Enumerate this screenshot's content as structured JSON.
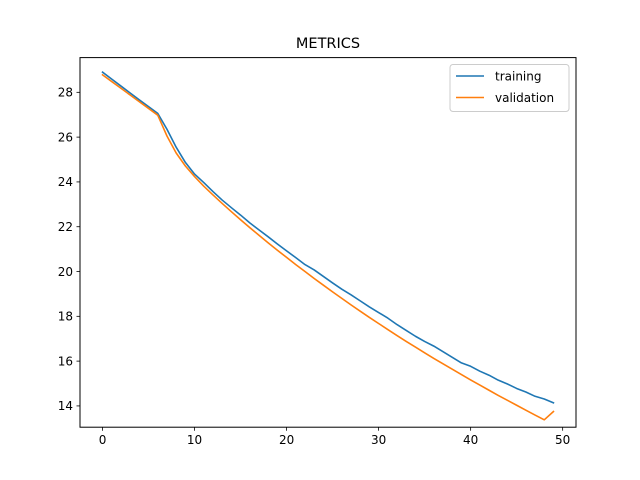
{
  "chart_data": {
    "type": "line",
    "title": "METRICS",
    "xlabel": "",
    "ylabel": "",
    "xlim": [
      -2.45,
      51.45
    ],
    "ylim": [
      13.05,
      29.55
    ],
    "xticks": [
      0,
      10,
      20,
      30,
      40,
      50
    ],
    "yticks": [
      14,
      16,
      18,
      20,
      22,
      24,
      26,
      28
    ],
    "grid": false,
    "legend_position": "top-right",
    "x": [
      0,
      1,
      2,
      3,
      4,
      5,
      6,
      7,
      8,
      9,
      10,
      11,
      12,
      13,
      14,
      15,
      16,
      17,
      18,
      19,
      20,
      21,
      22,
      23,
      24,
      25,
      26,
      27,
      28,
      29,
      30,
      31,
      32,
      33,
      34,
      35,
      36,
      37,
      38,
      39,
      40,
      41,
      42,
      43,
      44,
      45,
      46,
      47,
      48,
      49
    ],
    "series": [
      {
        "name": "training",
        "color": "#1f77b4",
        "values": [
          28.9,
          28.59,
          28.28,
          27.97,
          27.66,
          27.36,
          27.06,
          26.35,
          25.55,
          24.87,
          24.35,
          23.97,
          23.57,
          23.19,
          22.85,
          22.52,
          22.17,
          21.86,
          21.55,
          21.23,
          20.92,
          20.62,
          20.31,
          20.07,
          19.78,
          19.49,
          19.21,
          18.96,
          18.69,
          18.42,
          18.17,
          17.92,
          17.63,
          17.37,
          17.11,
          16.88,
          16.67,
          16.42,
          16.17,
          15.92,
          15.77,
          15.55,
          15.37,
          15.15,
          14.98,
          14.78,
          14.62,
          14.43,
          14.31,
          14.14
        ]
      },
      {
        "name": "validation",
        "color": "#ff7f0e",
        "values": [
          28.78,
          28.48,
          28.18,
          27.88,
          27.58,
          27.28,
          26.98,
          26.05,
          25.29,
          24.71,
          24.24,
          23.81,
          23.42,
          23.04,
          22.67,
          22.31,
          21.96,
          21.62,
          21.28,
          20.95,
          20.63,
          20.31,
          20.0,
          19.69,
          19.39,
          19.09,
          18.8,
          18.51,
          18.23,
          17.95,
          17.68,
          17.41,
          17.14,
          16.88,
          16.63,
          16.37,
          16.12,
          15.88,
          15.64,
          15.4,
          15.16,
          14.93,
          14.7,
          14.47,
          14.25,
          14.03,
          13.81,
          13.59,
          13.38,
          13.75
        ]
      }
    ]
  }
}
